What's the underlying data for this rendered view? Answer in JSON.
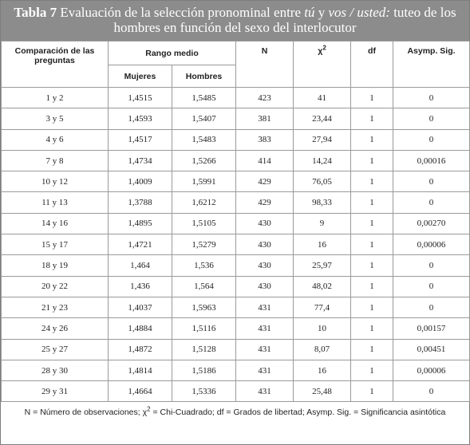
{
  "caption": {
    "label": "Tabla 7",
    "text_a": " Evaluación de la selección pronominal entre ",
    "term_1": "tú",
    "text_b": " y ",
    "term_2": "vos / usted:",
    "text_c": " tuteo de los hombres en función del sexo del interlocutor"
  },
  "headers": {
    "comparison": "Comparación de las preguntas",
    "rank": "Rango medio",
    "women": "Mujeres",
    "men": "Hombres",
    "n": "N",
    "chi": "χ",
    "chi_sup": "2",
    "df": "df",
    "asymp": "Asymp. Sig."
  },
  "rows": [
    [
      "1 y 2",
      "1,4515",
      "1,5485",
      "423",
      "41",
      "1",
      "0"
    ],
    [
      "3 y 5",
      "1,4593",
      "1,5407",
      "381",
      "23,44",
      "1",
      "0"
    ],
    [
      "4 y 6",
      "1,4517",
      "1,5483",
      "383",
      "27,94",
      "1",
      "0"
    ],
    [
      "7 y 8",
      "1,4734",
      "1,5266",
      "414",
      "14,24",
      "1",
      "0,00016"
    ],
    [
      "10 y 12",
      "1,4009",
      "1,5991",
      "429",
      "76,05",
      "1",
      "0"
    ],
    [
      "11 y 13",
      "1,3788",
      "1,6212",
      "429",
      "98,33",
      "1",
      "0"
    ],
    [
      "14 y 16",
      "1,4895",
      "1,5105",
      "430",
      "9",
      "1",
      "0,00270"
    ],
    [
      "15 y 17",
      "1,4721",
      "1,5279",
      "430",
      "16",
      "1",
      "0,00006"
    ],
    [
      "18 y 19",
      "1,464",
      "1,536",
      "430",
      "25,97",
      "1",
      "0"
    ],
    [
      "20 y 22",
      "1,436",
      "1,564",
      "430",
      "48,02",
      "1",
      "0"
    ],
    [
      "21 y 23",
      "1,4037",
      "1,5963",
      "431",
      "77,4",
      "1",
      "0"
    ],
    [
      "24 y 26",
      "1,4884",
      "1,5116",
      "431",
      "10",
      "1",
      "0,00157"
    ],
    [
      "25 y 27",
      "1,4872",
      "1,5128",
      "431",
      "8,07",
      "1",
      "0,00451"
    ],
    [
      "28 y 30",
      "1,4814",
      "1,5186",
      "431",
      "16",
      "1",
      "0,00006"
    ],
    [
      "29 y 31",
      "1,4664",
      "1,5336",
      "431",
      "25,48",
      "1",
      "0"
    ]
  ],
  "footnote": {
    "text_a": "N = Número de observaciones; χ",
    "sup": "2",
    "text_b": " = Chi-Cuadrado; df = Grados de libertad; Asymp. Sig. = Significancia asintótica"
  },
  "colors": {
    "caption_bg": "#8c8c8c",
    "border": "#9a9a9a"
  }
}
